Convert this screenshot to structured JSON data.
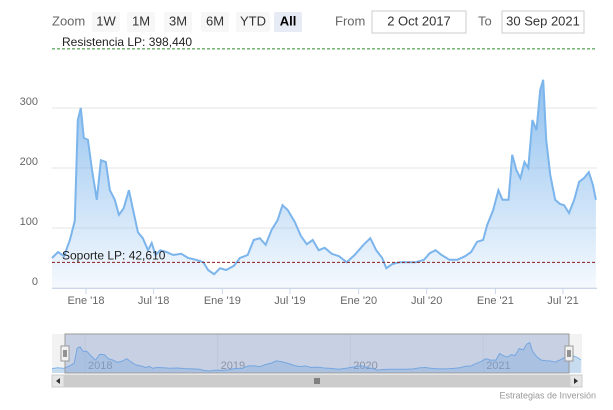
{
  "chart_data": {
    "type": "area",
    "range_selector": {
      "label": "Zoom",
      "buttons": [
        "1W",
        "1M",
        "3M",
        "6M",
        "YTD",
        "All"
      ],
      "selected": 5,
      "from_label": "From",
      "from": "2 Oct 2017",
      "to_label": "To",
      "to": "30 Sep 2021"
    },
    "plot_lines": [
      {
        "value": 398.44,
        "label": "Resistencia LP: 398,440",
        "color": "#2e8b2e"
      },
      {
        "value": 42.61,
        "label": "Soporte LP: 42,610",
        "color": "#8b1a1a"
      }
    ],
    "color": "#7cb5ec",
    "grid": true,
    "ylim": [
      0,
      400
    ],
    "yticks": [
      0,
      100,
      200,
      300
    ],
    "xlim": [
      "2017-10-02",
      "2021-09-30"
    ],
    "xticks": [
      {
        "value": "2018-01-01",
        "label": "Ene '18"
      },
      {
        "value": "2018-07-01",
        "label": "Jul '18"
      },
      {
        "value": "2019-01-01",
        "label": "Ene '19"
      },
      {
        "value": "2019-07-01",
        "label": "Jul '19"
      },
      {
        "value": "2020-01-01",
        "label": "Ene '20"
      },
      {
        "value": "2020-07-01",
        "label": "Jul '20"
      },
      {
        "value": "2021-01-01",
        "label": "Ene '21"
      },
      {
        "value": "2021-07-01",
        "label": "Jul '21"
      }
    ],
    "navigator": {
      "xticks": [
        {
          "value": "2018-01-01",
          "label": "2018"
        },
        {
          "value": "2019-01-01",
          "label": "2019"
        },
        {
          "value": "2020-01-01",
          "label": "2020"
        },
        {
          "value": "2021-01-01",
          "label": "2021"
        }
      ]
    },
    "credits": "Estrategias de Inversión",
    "x": [
      "2017-10-02",
      "2017-10-18",
      "2017-11-03",
      "2017-11-19",
      "2017-12-02",
      "2017-12-10",
      "2017-12-18",
      "2017-12-26",
      "2018-01-06",
      "2018-01-17",
      "2018-01-30",
      "2018-02-10",
      "2018-02-23",
      "2018-03-06",
      "2018-03-19",
      "2018-03-30",
      "2018-04-12",
      "2018-04-26",
      "2018-05-07",
      "2018-05-20",
      "2018-06-02",
      "2018-06-16",
      "2018-06-26",
      "2018-07-06",
      "2018-07-19",
      "2018-08-04",
      "2018-08-23",
      "2018-09-13",
      "2018-10-02",
      "2018-10-23",
      "2018-11-11",
      "2018-11-24",
      "2018-12-10",
      "2018-12-26",
      "2019-01-11",
      "2019-02-01",
      "2019-02-17",
      "2019-03-10",
      "2019-03-26",
      "2019-04-11",
      "2019-04-27",
      "2019-05-13",
      "2019-05-29",
      "2019-06-11",
      "2019-06-25",
      "2019-07-14",
      "2019-07-30",
      "2019-08-15",
      "2019-08-31",
      "2019-09-16",
      "2019-10-02",
      "2019-10-21",
      "2019-11-09",
      "2019-11-30",
      "2019-12-21",
      "2020-01-14",
      "2020-02-01",
      "2020-02-17",
      "2020-03-04",
      "2020-03-15",
      "2020-03-31",
      "2020-04-21",
      "2020-05-12",
      "2020-06-02",
      "2020-06-24",
      "2020-07-09",
      "2020-07-25",
      "2020-08-10",
      "2020-08-31",
      "2020-09-21",
      "2020-10-12",
      "2020-10-28",
      "2020-11-13",
      "2020-11-29",
      "2020-12-10",
      "2020-12-26",
      "2021-01-09",
      "2021-01-20",
      "2021-02-05",
      "2021-02-15",
      "2021-02-26",
      "2021-03-09",
      "2021-03-20",
      "2021-03-30",
      "2021-04-10",
      "2021-04-21",
      "2021-05-01",
      "2021-05-09",
      "2021-05-17",
      "2021-05-28",
      "2021-06-10",
      "2021-06-23",
      "2021-07-04",
      "2021-07-17",
      "2021-07-31",
      "2021-08-13",
      "2021-08-26",
      "2021-09-08",
      "2021-09-19",
      "2021-09-27"
    ],
    "values": [
      50,
      60,
      53,
      80,
      112,
      280,
      300,
      250,
      247,
      197,
      147,
      213,
      210,
      163,
      147,
      122,
      133,
      163,
      130,
      93,
      83,
      63,
      75,
      55,
      63,
      60,
      55,
      57,
      50,
      47,
      43,
      30,
      23,
      33,
      30,
      37,
      50,
      55,
      80,
      83,
      72,
      97,
      113,
      138,
      130,
      110,
      87,
      73,
      80,
      63,
      67,
      57,
      53,
      43,
      55,
      72,
      83,
      63,
      50,
      33,
      40,
      43,
      43,
      43,
      47,
      58,
      63,
      55,
      47,
      47,
      53,
      60,
      77,
      80,
      105,
      130,
      163,
      147,
      147,
      222,
      197,
      183,
      210,
      200,
      280,
      263,
      330,
      347,
      247,
      188,
      147,
      140,
      138,
      125,
      147,
      177,
      183,
      193,
      172,
      147
    ]
  }
}
